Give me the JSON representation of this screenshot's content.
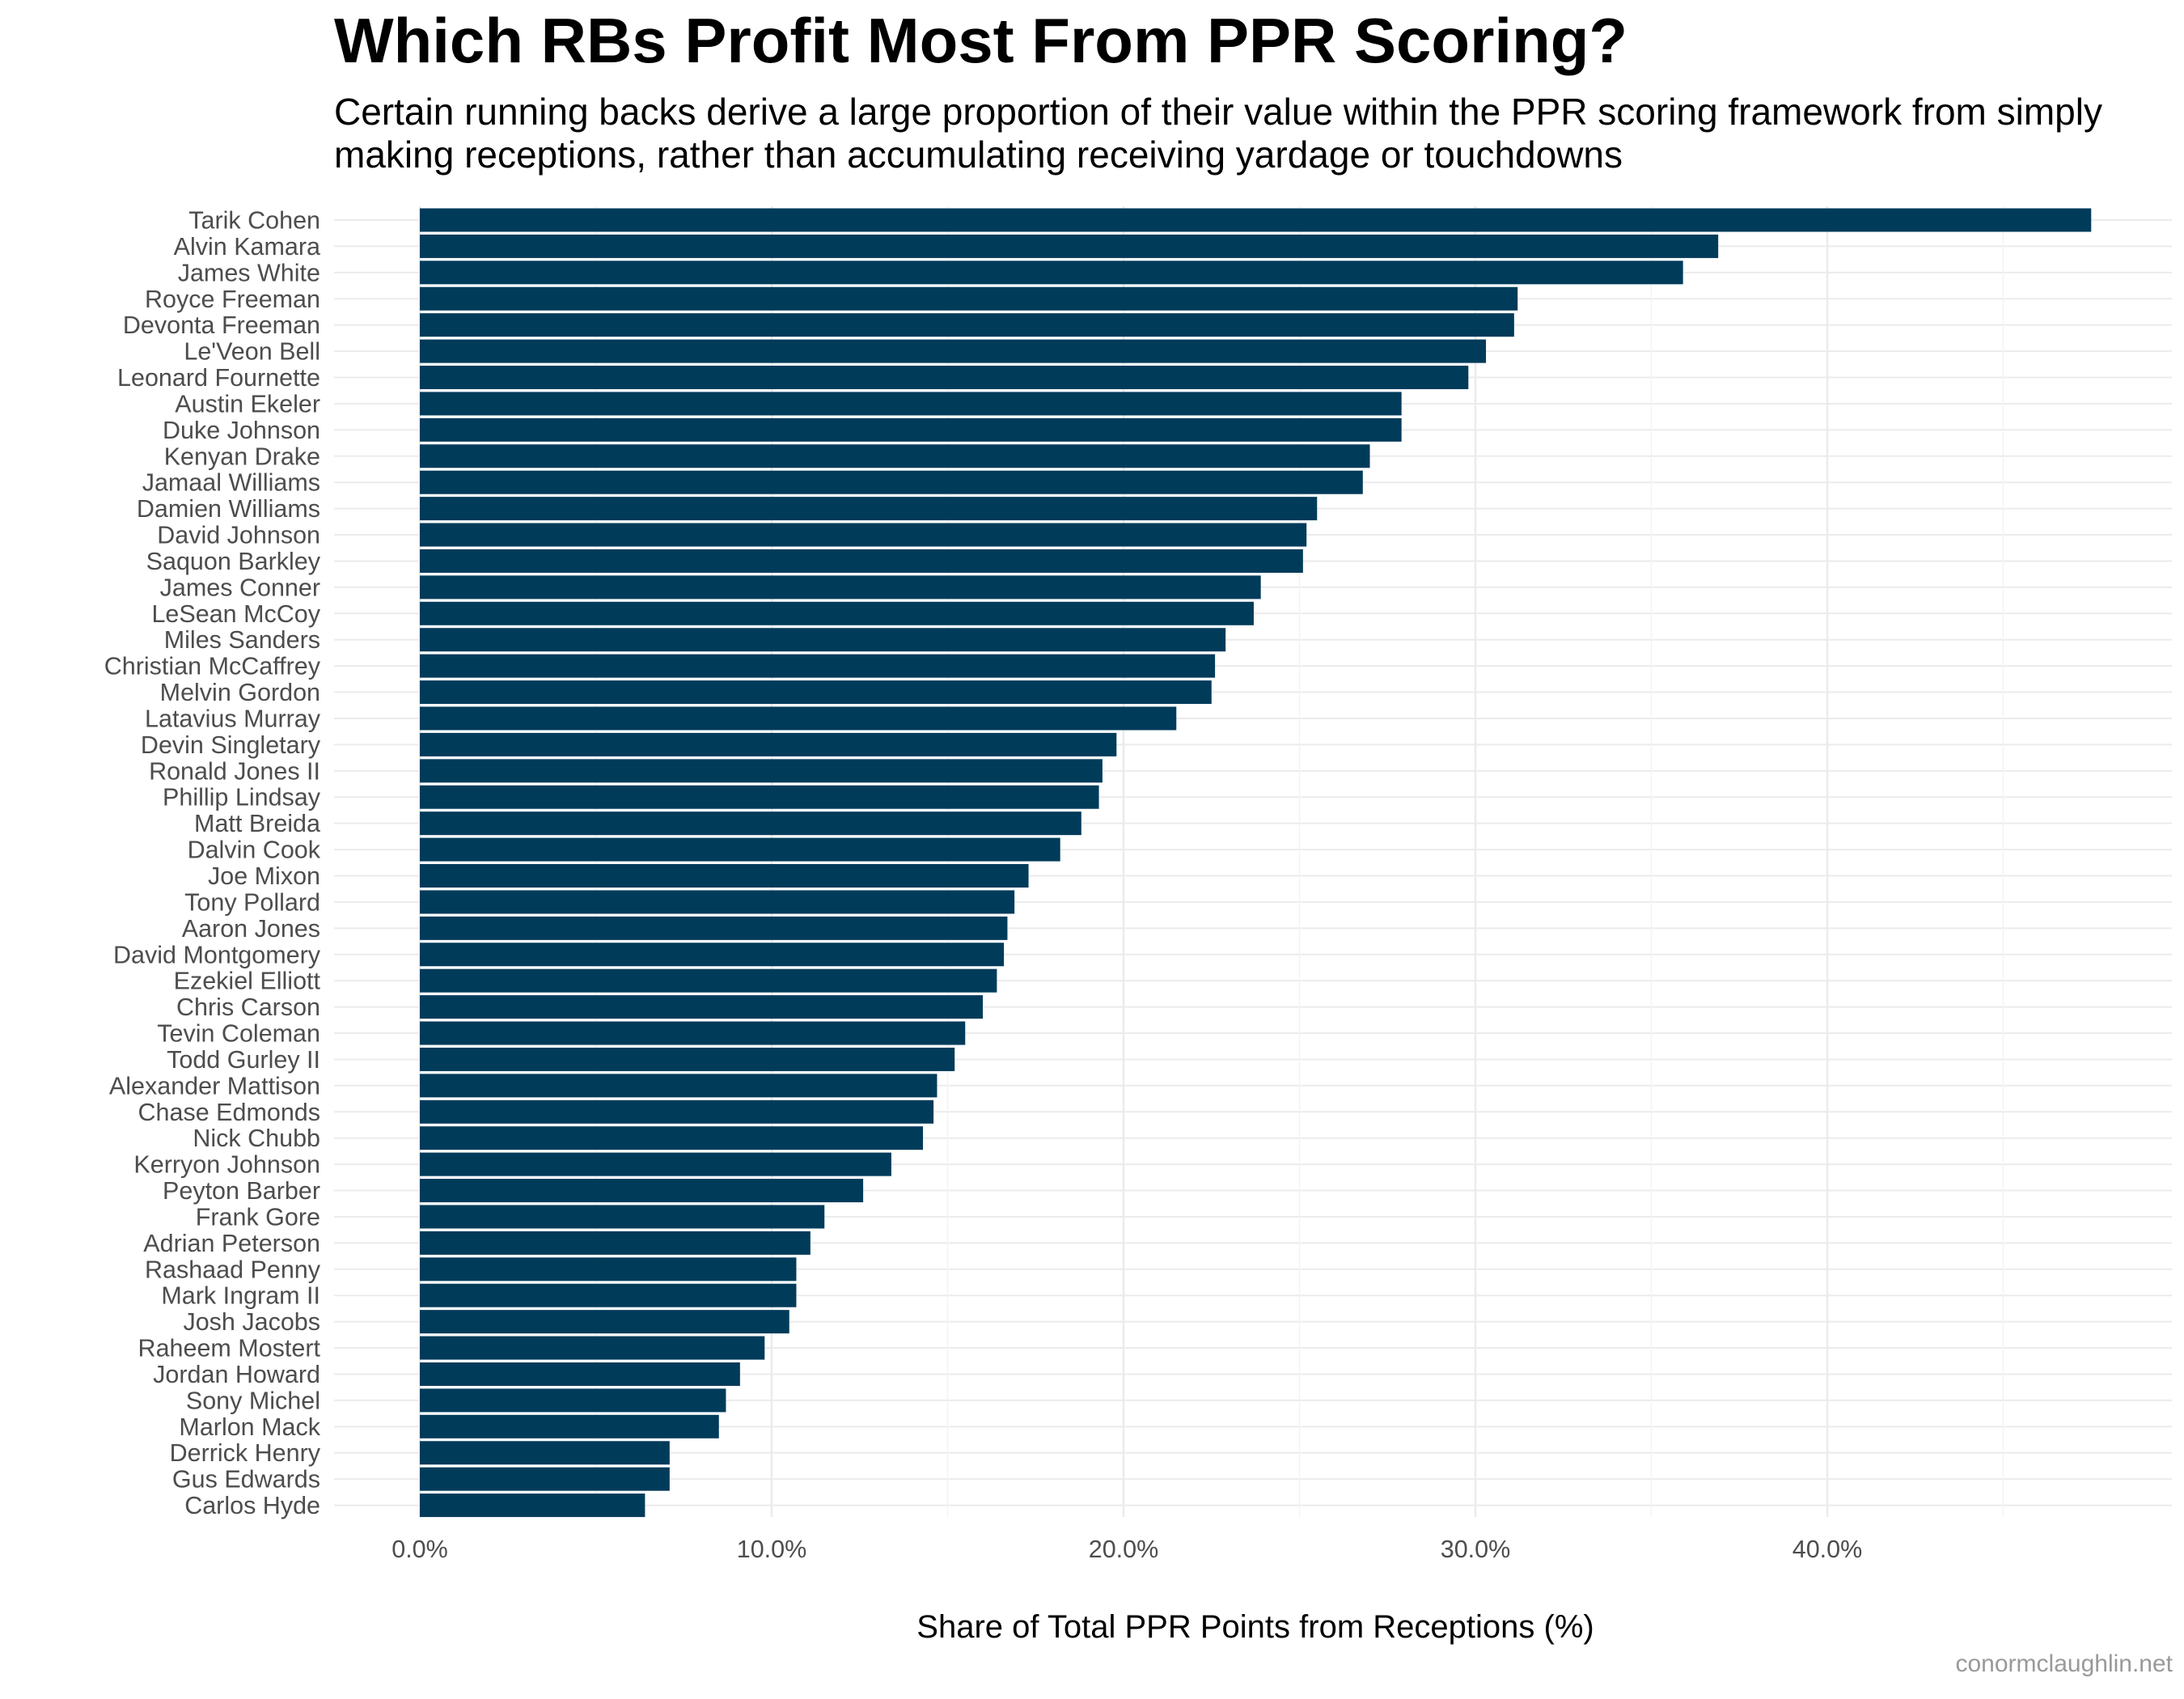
{
  "chart_data": {
    "type": "bar",
    "orientation": "horizontal",
    "title": "Which RBs Profit Most From PPR Scoring?",
    "subtitle": "Certain running backs derive a large proportion of their value within the PPR scoring framework from simply making receptions, rather than accumulating receiving yardage or touchdowns",
    "xlabel": "Share of Total PPR Points from Receptions (%)",
    "ylabel": "",
    "caption": "conormclaughlin.net",
    "xlim": [
      0,
      50
    ],
    "x_ticks": [
      0,
      10,
      20,
      30,
      40
    ],
    "x_tick_labels": [
      "0.0%",
      "10.0%",
      "20.0%",
      "30.0%",
      "40.0%"
    ],
    "bar_color": "#003B5A",
    "grid": true,
    "legend": "none",
    "categories": [
      "Tarik Cohen",
      "Alvin Kamara",
      "James White",
      "Royce Freeman",
      "Devonta Freeman",
      "Le'Veon Bell",
      "Leonard Fournette",
      "Austin Ekeler",
      "Duke Johnson",
      "Kenyan Drake",
      "Jamaal Williams",
      "Damien Williams",
      "David Johnson",
      "Saquon Barkley",
      "James Conner",
      "LeSean McCoy",
      "Miles Sanders",
      "Christian McCaffrey",
      "Melvin Gordon",
      "Latavius Murray",
      "Devin Singletary",
      "Ronald Jones II",
      "Phillip Lindsay",
      "Matt Breida",
      "Dalvin Cook",
      "Joe Mixon",
      "Tony Pollard",
      "Aaron Jones",
      "David Montgomery",
      "Ezekiel Elliott",
      "Chris Carson",
      "Tevin Coleman",
      "Todd Gurley II",
      "Alexander Mattison",
      "Chase Edmonds",
      "Nick Chubb",
      "Kerryon Johnson",
      "Peyton Barber",
      "Frank Gore",
      "Adrian Peterson",
      "Rashaad Penny",
      "Mark Ingram II",
      "Josh Jacobs",
      "Raheem Mostert",
      "Jordan Howard",
      "Sony Michel",
      "Marlon Mack",
      "Derrick Henry",
      "Gus Edwards",
      "Carlos Hyde"
    ],
    "values": [
      47.5,
      36.9,
      35.9,
      31.2,
      31.1,
      30.3,
      29.8,
      27.9,
      27.9,
      27.0,
      26.8,
      25.5,
      25.2,
      25.1,
      23.9,
      23.7,
      22.9,
      22.6,
      22.5,
      21.5,
      19.8,
      19.4,
      19.3,
      18.8,
      18.2,
      17.3,
      16.9,
      16.7,
      16.6,
      16.4,
      16.0,
      15.5,
      15.2,
      14.7,
      14.6,
      14.3,
      13.4,
      12.6,
      11.5,
      11.1,
      10.7,
      10.7,
      10.5,
      9.8,
      9.1,
      8.7,
      8.5,
      7.1,
      7.1,
      6.4
    ]
  }
}
